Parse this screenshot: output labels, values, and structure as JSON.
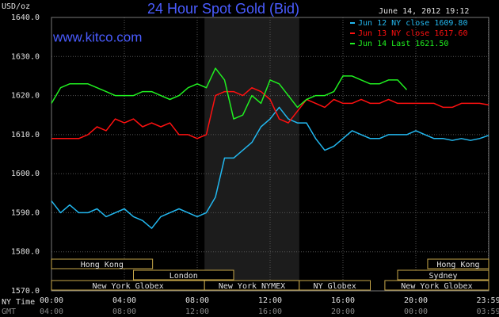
{
  "chart_data": {
    "type": "line",
    "title": "24 Hour Spot Gold (Bid)",
    "watermark": "www.kitco.com",
    "timestamp": "June 14, 2012 19:12",
    "y_label": "USD/oz",
    "x_label": "NY Time",
    "x2_label": "GMT",
    "x": [
      0,
      0.5,
      1,
      1.5,
      2,
      2.5,
      3,
      3.5,
      4,
      4.5,
      5,
      5.5,
      6,
      6.5,
      7,
      7.5,
      8,
      8.5,
      9,
      9.5,
      10,
      10.5,
      11,
      11.5,
      12,
      12.5,
      13,
      13.5,
      14,
      14.5,
      15,
      15.5,
      16,
      16.5,
      17,
      17.5,
      18,
      18.5,
      19,
      19.5,
      20,
      20.5,
      21,
      21.5,
      22,
      22.5,
      23,
      23.5,
      24
    ],
    "series": [
      {
        "name": "Jun 12 NY close 1609.80",
        "color": "#22b8f0",
        "values": [
          1593,
          1590,
          1592,
          1590,
          1590,
          1591,
          1589,
          1590,
          1591,
          1589,
          1588,
          1586,
          1589,
          1590,
          1591,
          1590,
          1589,
          1590,
          1594,
          1604,
          1604,
          1606,
          1608,
          1612,
          1614,
          1617,
          1614,
          1613,
          1613,
          1609,
          1606,
          1607,
          1609,
          1611,
          1610,
          1609,
          1609,
          1610,
          1610,
          1610,
          1611,
          1610,
          1609,
          1609,
          1608.5,
          1609,
          1608.5,
          1609,
          1609.8
        ]
      },
      {
        "name": "Jun 13 NY close 1617.60",
        "color": "#ff1010",
        "values": [
          1609,
          1609,
          1609,
          1609,
          1610,
          1612,
          1611,
          1614,
          1613,
          1614,
          1612,
          1613,
          1612,
          1613,
          1610,
          1610,
          1609,
          1610,
          1620,
          1621,
          1621,
          1620,
          1622,
          1621,
          1619,
          1614,
          1613,
          1616,
          1619,
          1618,
          1617,
          1619,
          1618,
          1618,
          1619,
          1618,
          1618,
          1619,
          1618,
          1618,
          1618,
          1618,
          1618,
          1617,
          1617,
          1618,
          1618,
          1618,
          1617.6
        ]
      },
      {
        "name": "Jun 14 Last 1621.50",
        "color": "#20f020",
        "values": [
          1618,
          1622,
          1623,
          1623,
          1623,
          1622,
          1621,
          1620,
          1620,
          1620,
          1621,
          1621,
          1620,
          1619,
          1620,
          1622,
          1623,
          1622,
          1627,
          1624,
          1614,
          1615,
          1620,
          1618,
          1624,
          1623,
          1620,
          1617,
          1619,
          1620,
          1620,
          1621,
          1625,
          1625,
          1624,
          1623,
          1623,
          1624,
          1624,
          1621.5,
          null,
          null,
          null,
          null,
          null,
          null,
          null,
          null,
          null
        ]
      }
    ],
    "xlim": [
      0,
      24
    ],
    "xticks": [
      {
        "value": 0,
        "label": "00:00"
      },
      {
        "value": 4,
        "label": "04:00"
      },
      {
        "value": 8,
        "label": "08:00"
      },
      {
        "value": 12,
        "label": "12:00"
      },
      {
        "value": 16,
        "label": "16:00"
      },
      {
        "value": 20,
        "label": "20:00"
      },
      {
        "value": 23.98,
        "label": "23:59"
      }
    ],
    "gmt_ticklabels": [
      "04:00",
      "08:00",
      "12:00",
      "16:00",
      "20:00",
      "00:00",
      "03:59"
    ],
    "ylim": [
      1570,
      1640
    ],
    "yticks": [
      {
        "value": 1570,
        "label": "1570.0"
      },
      {
        "value": 1580,
        "label": "1580.0"
      },
      {
        "value": 1590,
        "label": "1590.0"
      },
      {
        "value": 1600,
        "label": "1600.0"
      },
      {
        "value": 1610,
        "label": "1610.0"
      },
      {
        "value": 1620,
        "label": "1620.0"
      },
      {
        "value": 1630,
        "label": "1630.0"
      },
      {
        "value": 1640,
        "label": "1640.0"
      }
    ],
    "grid": true,
    "highlight": [
      8.4,
      13.6
    ],
    "sessions": [
      {
        "label": "Hong Kong",
        "start": 0,
        "end": 5.55,
        "row": 0
      },
      {
        "label": "Hong Kong",
        "start": 20.65,
        "end": 24,
        "row": 0
      },
      {
        "label": "London",
        "start": 4.5,
        "end": 10,
        "row": 1
      },
      {
        "label": "Sydney",
        "start": 19,
        "end": 24,
        "row": 1
      },
      {
        "label": "New York Globex",
        "start": 0,
        "end": 8.4,
        "row": 2
      },
      {
        "label": "New York NYMEX",
        "start": 8.4,
        "end": 13.6,
        "row": 2
      },
      {
        "label": "NY Globex",
        "start": 13.6,
        "end": 17.5,
        "row": 2
      },
      {
        "label": "New York Globex",
        "start": 18.3,
        "end": 24,
        "row": 2
      }
    ]
  }
}
